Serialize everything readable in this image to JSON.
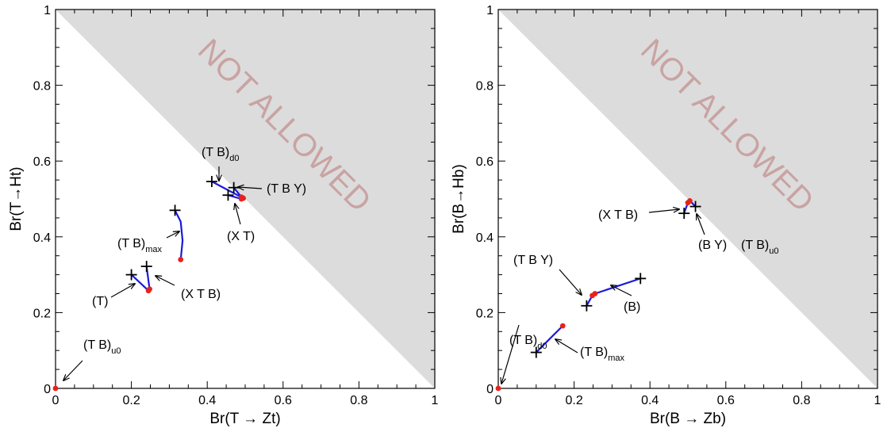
{
  "chart_data": [
    {
      "type": "scatter",
      "xlabel": "Br(T → Zt)",
      "ylabel": "Br(T→Ht)",
      "xlim": [
        0,
        1
      ],
      "ylim": [
        0,
        1
      ],
      "xticks": [
        "0",
        "0.2",
        "0.4",
        "0.6",
        "0.8",
        "1"
      ],
      "yticks": [
        "0",
        "0.2",
        "0.4",
        "0.6",
        "0.8",
        "1"
      ],
      "excluded_region_label": "NOT ALLOWED",
      "colors": {
        "line": "#1a1adb",
        "dot": "#e8221b",
        "region": "#dcdcdc",
        "region_text": "#c9a3a3"
      },
      "series": [
        {
          "label": "(T)",
          "plus": [
            0.2,
            0.3
          ],
          "dot": [
            0.245,
            0.258
          ],
          "curve": [
            [
              0.2,
              0.3
            ],
            [
              0.245,
              0.258
            ]
          ]
        },
        {
          "label": "(X T B)",
          "plus": [
            0.24,
            0.322
          ],
          "dot": [
            0.248,
            0.262
          ],
          "curve": [
            [
              0.24,
              0.322
            ],
            [
              0.248,
              0.262
            ]
          ]
        },
        {
          "label": "(T B)",
          "label_sub": "max",
          "plus": [
            0.315,
            0.47
          ],
          "dot": [
            0.33,
            0.34
          ],
          "curve": [
            [
              0.315,
              0.47
            ],
            [
              0.33,
              0.44
            ],
            [
              0.335,
              0.39
            ],
            [
              0.33,
              0.34
            ]
          ]
        },
        {
          "label": "(T B)",
          "label_sub": "d0",
          "plus": [
            0.412,
            0.546
          ],
          "dot": [
            0.495,
            0.502
          ],
          "curve": [
            [
              0.412,
              0.546
            ],
            [
              0.495,
              0.502
            ]
          ]
        },
        {
          "label": "(T B Y)",
          "plus": [
            0.47,
            0.53
          ],
          "dot": [
            0.49,
            0.505
          ],
          "curve": [
            [
              0.47,
              0.53
            ],
            [
              0.49,
              0.505
            ]
          ]
        },
        {
          "label": "(X T)",
          "plus": [
            0.455,
            0.51
          ],
          "dot": [
            0.49,
            0.5
          ],
          "curve": [
            [
              0.455,
              0.51
            ],
            [
              0.49,
              0.5
            ]
          ]
        },
        {
          "label": "(T B)",
          "label_sub": "u0",
          "plus": null,
          "dot": [
            0.0,
            0.0
          ],
          "curve": []
        }
      ]
    },
    {
      "type": "scatter",
      "xlabel": "Br(B → Zb)",
      "ylabel": "Br(B→Hb)",
      "xlim": [
        0,
        1
      ],
      "ylim": [
        0,
        1
      ],
      "xticks": [
        "0",
        "0.2",
        "0.4",
        "0.6",
        "0.8",
        "1"
      ],
      "yticks": [
        "0",
        "0.2",
        "0.4",
        "0.6",
        "0.8",
        "1"
      ],
      "excluded_region_label": "NOT ALLOWED",
      "colors": {
        "line": "#1a1adb",
        "dot": "#e8221b",
        "region": "#dcdcdc",
        "region_text": "#c9a3a3"
      },
      "series": [
        {
          "label": "(B)",
          "plus": [
            0.375,
            0.29
          ],
          "dot": [
            0.255,
            0.25
          ],
          "curve": [
            [
              0.375,
              0.29
            ],
            [
              0.3,
              0.265
            ],
            [
              0.255,
              0.25
            ]
          ]
        },
        {
          "label": "(T B Y)",
          "plus": [
            0.233,
            0.218
          ],
          "dot": [
            0.248,
            0.245
          ],
          "curve": [
            [
              0.233,
              0.218
            ],
            [
              0.248,
              0.245
            ]
          ]
        },
        {
          "label": "(T B)",
          "label_sub": "max",
          "plus": [
            0.1,
            0.095
          ],
          "dot": [
            0.17,
            0.165
          ],
          "curve": [
            [
              0.1,
              0.095
            ],
            [
              0.17,
              0.165
            ]
          ]
        },
        {
          "label": "(X T B)",
          "plus": [
            0.49,
            0.462
          ],
          "dot": [
            0.5,
            0.49
          ],
          "curve": [
            [
              0.49,
              0.462
            ],
            [
              0.5,
              0.49
            ]
          ]
        },
        {
          "label": "(B Y)",
          "plus": [
            0.52,
            0.48
          ],
          "dot": [
            0.505,
            0.495
          ],
          "curve": [
            [
              0.52,
              0.48
            ],
            [
              0.505,
              0.495
            ]
          ]
        },
        {
          "label": "(T B)",
          "label_sub": "u0",
          "plus": null,
          "dot": null,
          "curve": []
        },
        {
          "label": "(T B)",
          "label_sub": "d0",
          "plus": null,
          "dot": [
            0.0,
            0.0
          ],
          "curve": []
        }
      ]
    }
  ]
}
